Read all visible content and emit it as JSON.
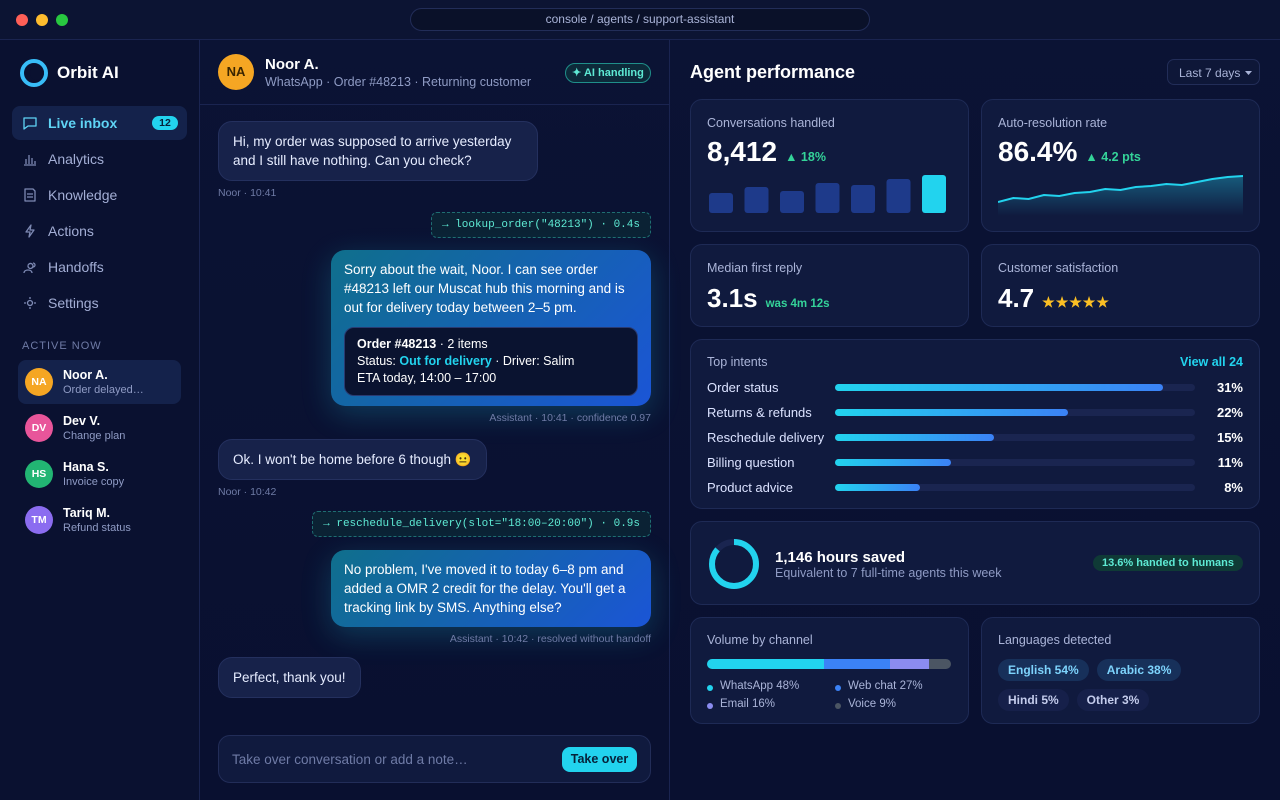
{
  "window": {
    "url": "console / agents / support-assistant"
  },
  "sidebar": {
    "brand": "Orbit AI",
    "nav": [
      {
        "label": "Live inbox",
        "badge": "12"
      },
      {
        "label": "Analytics"
      },
      {
        "label": "Knowledge"
      },
      {
        "label": "Actions"
      },
      {
        "label": "Handoffs"
      },
      {
        "label": "Settings"
      }
    ],
    "active_heading": "ACTIVE NOW",
    "contacts": [
      {
        "initials": "NA",
        "name": "Noor A.",
        "note": "Order delayed…",
        "color": "#f5a623"
      },
      {
        "initials": "DV",
        "name": "Dev V.",
        "note": "Change plan",
        "color": "#e8559a"
      },
      {
        "initials": "HS",
        "name": "Hana S.",
        "note": "Invoice copy",
        "color": "#22b573"
      },
      {
        "initials": "TM",
        "name": "Tariq M.",
        "note": "Refund status",
        "color": "#8b6cf0"
      }
    ]
  },
  "conversation": {
    "initials": "NA",
    "name": "Noor A.",
    "meta": "WhatsApp · Order #48213 · Returning customer",
    "badge": "✦ AI handling",
    "messages": [
      {
        "role": "customer",
        "text": "Hi, my order was supposed to arrive yesterday and I still have nothing. Can you check?",
        "meta": "Noor · 10:41"
      },
      {
        "role": "tool",
        "text": "→ lookup_order(\"48213\") · 0.4s"
      },
      {
        "role": "assistant",
        "text": "Sorry about the wait, Noor. I can see order #48213 left our Muscat hub this morning and is out for delivery today between 2–5 pm.",
        "card": [
          [
            {
              "text": "Order #48213",
              "style": "bold"
            },
            {
              "text": " · 2 items"
            }
          ],
          [
            {
              "text": "Status: "
            },
            {
              "text": "Out for delivery",
              "style": "accent"
            },
            {
              "text": " · Driver: Salim"
            }
          ],
          [
            {
              "text": "ETA today, 14:00 – 17:00"
            }
          ]
        ],
        "meta": "Assistant · 10:41 · confidence 0.97"
      },
      {
        "role": "customer",
        "text": "Ok. I won't be home before 6 though 😐",
        "meta": "Noor · 10:42"
      },
      {
        "role": "tool",
        "text": "→ reschedule_delivery(slot=\"18:00–20:00\") · 0.9s"
      },
      {
        "role": "assistant",
        "text": "No problem, I've moved it to today 6–8 pm and added a OMR 2 credit for the delay. You'll get a tracking link by SMS. Anything else?",
        "meta": "Assistant · 10:42 · resolved without handoff"
      },
      {
        "role": "customer",
        "text": "Perfect, thank you!"
      }
    ],
    "input": "Take over conversation or add a note…",
    "button": "Take over"
  },
  "dashboard": {
    "title": "Agent performance",
    "range": "Last 7 days",
    "kpis": [
      {
        "label": "Conversations handled",
        "value": "8,412",
        "delta": "▲ 18%",
        "bars": [
          20,
          26,
          22,
          30,
          28,
          34,
          38
        ]
      },
      {
        "label": "Auto-resolution rate",
        "value": "86.4%",
        "delta": "▲ 4.2 pts",
        "trend": [
          40,
          44,
          43,
          47,
          46,
          49,
          50,
          53,
          52,
          55,
          56,
          58,
          57,
          60,
          63,
          65,
          66
        ],
        "trend_ylim": [
          30,
          70
        ]
      },
      {
        "label": "Median first reply",
        "value": "3.1s",
        "note": "was 4m 12s"
      },
      {
        "label": "Customer satisfaction",
        "value": "4.7",
        "stars": "★★★★★"
      }
    ],
    "intents": {
      "title": "Top intents",
      "link": "View all 24",
      "xlim": [
        0,
        34
      ],
      "rows": [
        {
          "label": "Order status",
          "value": 31,
          "value_label": "31%"
        },
        {
          "label": "Returns & refunds",
          "value": 22,
          "value_label": "22%"
        },
        {
          "label": "Reschedule delivery",
          "value": 15,
          "value_label": "15%"
        },
        {
          "label": "Billing question",
          "value": 11,
          "value_label": "11%"
        },
        {
          "label": "Product advice",
          "value": 8,
          "value_label": "8%"
        }
      ]
    },
    "savings": {
      "headline": "1,146 hours saved",
      "detail": "Equivalent to 7 full-time agents this week",
      "pill": "13.6% handed to humans",
      "ring": 86.4
    },
    "channels": {
      "title": "Volume by channel",
      "xlim": [
        0,
        100
      ],
      "segments": [
        {
          "label": "WhatsApp 48%",
          "value": 48,
          "color": "#22d3ee"
        },
        {
          "label": "Web chat 27%",
          "value": 27,
          "color": "#3b82f6"
        },
        {
          "label": "Email 16%",
          "value": 16,
          "color": "#8b8cf0"
        },
        {
          "label": "Voice 9%",
          "value": 9,
          "color": "#4b5563"
        }
      ]
    },
    "languages": {
      "title": "Languages detected",
      "tags": [
        "English 54%",
        "Arabic 38%",
        "Hindi 5%",
        "Other 3%"
      ]
    }
  }
}
